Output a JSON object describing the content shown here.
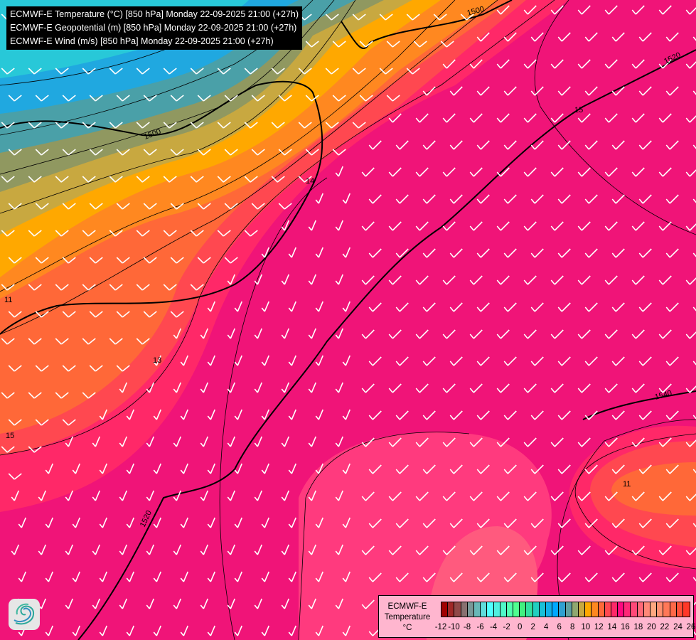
{
  "header": {
    "lines": [
      "ECMWF-E Temperature (°C) [850 hPa] Monday 22-09-2025 21:00 (+27h)",
      "ECMWF-E Geopotential (m) [850 hPa] Monday 22-09-2025 21:00 (+27h)",
      "ECMWF-E Wind (m/s) [850 hPa] Monday 22-09-2025 21:00 (+27h)"
    ]
  },
  "map": {
    "geopotential_labels": [
      "1500",
      "1500",
      "1520",
      "1520",
      "1540"
    ],
    "temperature_labels": [
      "11",
      "14",
      "15",
      "13",
      "11",
      "15"
    ]
  },
  "legend": {
    "title_line1": "ECMWF-E",
    "title_line2": "Temperature",
    "unit": "°C",
    "ticks": [
      "-12",
      "-10",
      "-8",
      "-6",
      "-4",
      "-2",
      "0",
      "2",
      "4",
      "6",
      "8",
      "10",
      "12",
      "14",
      "16",
      "18",
      "20",
      "22",
      "24",
      "26"
    ],
    "colors": [
      "#a00000",
      "#a02828",
      "#904848",
      "#887070",
      "#789898",
      "#68b8b8",
      "#60dcdc",
      "#50ffff",
      "#50f0e0",
      "#50f8c8",
      "#50ffb0",
      "#50ff90",
      "#40f080",
      "#30e0a0",
      "#20d0c0",
      "#18c0d8",
      "#10b0e8",
      "#00a8ff",
      "#30a0d0",
      "#60a0a0",
      "#90a870",
      "#c8a840",
      "#ffa800",
      "#ff8820",
      "#ff6838",
      "#ff4850",
      "#ff2868",
      "#ff0880",
      "#ff2878",
      "#ff4878",
      "#ff6878",
      "#ff8878",
      "#ffa880",
      "#ff9070",
      "#ff7858",
      "#ff6848",
      "#ff5038",
      "#ff3828"
    ]
  },
  "logo": {
    "name": "ecmwf-logo"
  }
}
